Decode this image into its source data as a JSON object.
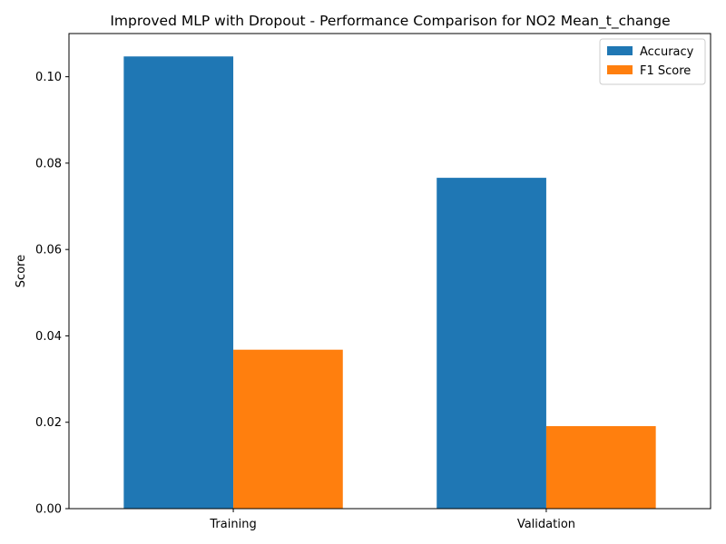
{
  "chart_data": {
    "type": "bar",
    "title": "Improved MLP with Dropout - Performance Comparison for NO2 Mean_t_change",
    "xlabel": "",
    "ylabel": "Score",
    "categories": [
      "Training",
      "Validation"
    ],
    "series": [
      {
        "name": "Accuracy",
        "color": "#1f77b4",
        "values": [
          0.1047,
          0.0766
        ]
      },
      {
        "name": "F1 Score",
        "color": "#ff7f0e",
        "values": [
          0.0368,
          0.0191
        ]
      }
    ],
    "ylim": [
      0,
      0.11
    ],
    "yticks": [
      0.0,
      0.02,
      0.04,
      0.06,
      0.08,
      0.1
    ],
    "ytick_labels": [
      "0.00",
      "0.02",
      "0.04",
      "0.06",
      "0.08",
      "0.10"
    ],
    "grid": false,
    "legend_position": "top-right"
  }
}
